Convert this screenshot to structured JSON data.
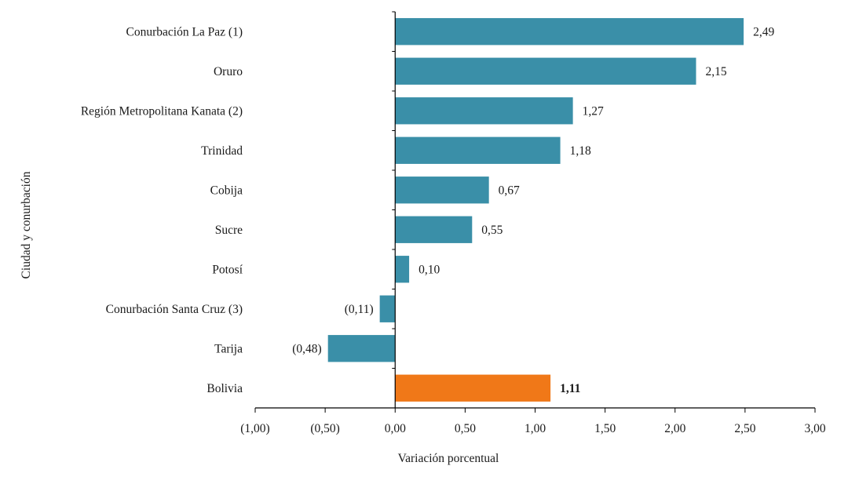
{
  "chart_data": {
    "type": "bar",
    "orientation": "horizontal",
    "title": "",
    "xlabel": "Variación porcentual",
    "ylabel": "Ciudad y conurbación",
    "xlim": [
      -1.0,
      3.0
    ],
    "xticks": [
      -1.0,
      -0.5,
      0.0,
      0.5,
      1.0,
      1.5,
      2.0,
      2.5,
      3.0
    ],
    "xtick_labels": [
      "(1,00)",
      "(0,50)",
      "0,00",
      "0,50",
      "1,00",
      "1,50",
      "2,00",
      "2,50",
      "3,00"
    ],
    "grid": false,
    "categories": [
      "Conurbación La Paz (1)",
      "Oruro",
      "Región Metropolitana Kanata (2)",
      "Trinidad",
      "Cobija",
      "Sucre",
      "Potosí",
      "Conurbación Santa Cruz (3)",
      "Tarija",
      "Bolivia"
    ],
    "values": [
      2.49,
      2.15,
      1.27,
      1.18,
      0.67,
      0.55,
      0.1,
      -0.11,
      -0.48,
      1.11
    ],
    "value_labels": [
      "2,49",
      "2,15",
      "1,27",
      "1,18",
      "0,67",
      "0,55",
      "0,10",
      "(0,11)",
      "(0,48)",
      "1,11"
    ],
    "highlight_index": 9,
    "colors": {
      "default": "#3a8fa8",
      "highlight": "#f07818",
      "axis": "#000000"
    }
  }
}
